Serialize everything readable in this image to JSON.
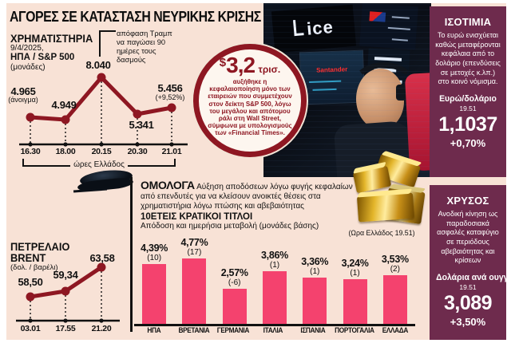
{
  "title": "ΑΓΟΡΕΣ ΣΕ ΚΑΤΑΣΤΑΣΗ ΝΕΥΡΙΚΗΣ ΚΡΙΣΗΣ",
  "colors": {
    "paper": "#f8e2d6",
    "accent": "#8e1722",
    "bar-pink": "#f4426e",
    "panel-purple": "#6e2b4d",
    "ink": "#111111"
  },
  "stocks": {
    "heading": "ΧΡΗΜΑΤΙΣΤΗΡΙΑ",
    "date": "9/4/2025,",
    "index": "ΗΠΑ / S&P 500",
    "unit": "(μονάδες)",
    "annotation": "απόφαση Τραμπ να παγώσει 90 ημέρες τους δασμούς",
    "axis_note": "ώρες Ελλάδος",
    "points": [
      {
        "time": "16.30",
        "value": "4.965",
        "note": "(άνοιγμα)"
      },
      {
        "time": "18.00",
        "value": "4.949"
      },
      {
        "time": "20.15",
        "value": "8.040"
      },
      {
        "time": "20.30",
        "value": "5.341"
      },
      {
        "time": "21.01",
        "value": "5.456",
        "note": "(+9,52%)"
      }
    ]
  },
  "badge": {
    "currency": "$",
    "amount": "3,2",
    "unit": "τρισ.",
    "text": "αυξήθηκε η κεφαλαιοποίηση μόνο των εταιρειών που συμμετέχουν στον δείκτη S&P 500, λόγω του μεγάλου και απότομου ράλι στη Wall Street, σύμφωνα με υπολογισμούς των «Financial Times»."
  },
  "photo": {
    "sign": "ICE",
    "screen_label": "Santander"
  },
  "oil": {
    "heading_line1": "ΠΕΤΡΕΛΑΙΟ",
    "heading_line2": "BRENT",
    "unit": "(δολ. / βαρέλι)",
    "points": [
      {
        "time": "03.01",
        "value": "58,50"
      },
      {
        "time": "17.55",
        "value": "59,34"
      },
      {
        "time": "21.20",
        "value": "63,58"
      }
    ]
  },
  "bonds": {
    "heading": "ΟΜΟΛΟΓΑ",
    "description": "Αύξηση αποδόσεων λόγω φυγής κεφαλαίων από επενδυτές για να κλείσουν ανοικτές θέσεις στα χρηματιστήρια λόγω πτώσης και αβεβαιότητας",
    "subheading": "10ΕΤΕΙΣ ΚΡΑΤΙΚΟΙ ΤΙΤΛΟΙ",
    "subnote": "Απόδοση και ημερήσια μεταβολή (μονάδες βάσης)",
    "time_note": "(Ωρα Ελλάδος 19.51)",
    "bars": [
      {
        "country": "ΗΠΑ",
        "value": "4,39%",
        "change": "(10)",
        "num": 4.39
      },
      {
        "country": "ΒΡΕΤΑΝΙΑ",
        "value": "4,77%",
        "change": "(17)",
        "num": 4.77
      },
      {
        "country": "ΓΕΡΜΑΝΙΑ",
        "value": "2,57%",
        "change": "(-6)",
        "num": 2.57
      },
      {
        "country": "ΙΤΑΛΙΑ",
        "value": "3,86%",
        "change": "(1)",
        "num": 3.86
      },
      {
        "country": "ΙΣΠΑΝΙΑ",
        "value": "3,36%",
        "change": "(1)",
        "num": 3.36
      },
      {
        "country": "ΠΟΡΤΟΓΑΛΙΑ",
        "value": "3,24%",
        "change": "(1)",
        "num": 3.24
      },
      {
        "country": "ΕΛΛΑΔΑ",
        "value": "3,53%",
        "change": "(2)",
        "num": 3.53
      }
    ]
  },
  "exchange": {
    "heading": "ΙΣΟΤΙΜΙΑ",
    "description": "Το ευρώ ενισχύεται καθώς μεταφέρονται κεφάλαια από το δολάριο (επενδύσεις σε μετοχές κ.λπ.) στο κοινό νόμισμα.",
    "pair": "Ευρώ/δολάριο",
    "time": "19.51",
    "value": "1,1037",
    "change": "+0,70%"
  },
  "gold": {
    "heading": "ΧΡΥΣΟΣ",
    "description": "Ανοδική κίνηση ως παραδοσιακά ασφαλές καταφύγιο σε περιόδους αβεβαιότητας και κρίσεων",
    "unit_label": "Δολάρια ανά ουγγιά",
    "time": "19.51",
    "value": "3,089",
    "change": "+3,50%"
  },
  "chart_data": [
    {
      "type": "line",
      "title": "ΧΡΗΜΑΤΙΣΤΗΡΙΑ 9/4/2025, ΗΠΑ / S&P 500 (μονάδες)",
      "x": [
        "16.30",
        "18.00",
        "20.15",
        "20.30",
        "21.01"
      ],
      "values": [
        4965,
        4949,
        8040,
        5341,
        5456
      ],
      "xlabel": "ώρες Ελλάδος",
      "annotations": [
        "4.965 (άνοιγμα)",
        "5.456 (+9,52%)",
        "απόφαση Τραμπ να παγώσει 90 ημέρες τους δασμούς"
      ],
      "legend_position": "none",
      "grid": false
    },
    {
      "type": "line",
      "title": "ΠΕΤΡΕΛΑΙΟ BRENT (δολ. / βαρέλι)",
      "x": [
        "03.01",
        "17.55",
        "21.20"
      ],
      "values": [
        58.5,
        59.34,
        63.58
      ],
      "legend_position": "none",
      "grid": false
    },
    {
      "type": "bar",
      "title": "10ΕΤΕΙΣ ΚΡΑΤΙΚΟΙ ΤΙΤΛΟΙ — Απόδοση και ημερήσια μεταβολή (μονάδες βάσης)",
      "categories": [
        "ΗΠΑ",
        "ΒΡΕΤΑΝΙΑ",
        "ΓΕΡΜΑΝΙΑ",
        "ΙΤΑΛΙΑ",
        "ΙΣΠΑΝΙΑ",
        "ΠΟΡΤΟΓΑΛΙΑ",
        "ΕΛΛΑΔΑ"
      ],
      "values": [
        4.39,
        4.77,
        2.57,
        3.86,
        3.36,
        3.24,
        3.53
      ],
      "changes_bps": [
        10,
        17,
        -6,
        1,
        1,
        1,
        2
      ],
      "note": "(Ωρα Ελλάδος 19.51)",
      "ylim": [
        0,
        5
      ],
      "grid": false
    }
  ]
}
